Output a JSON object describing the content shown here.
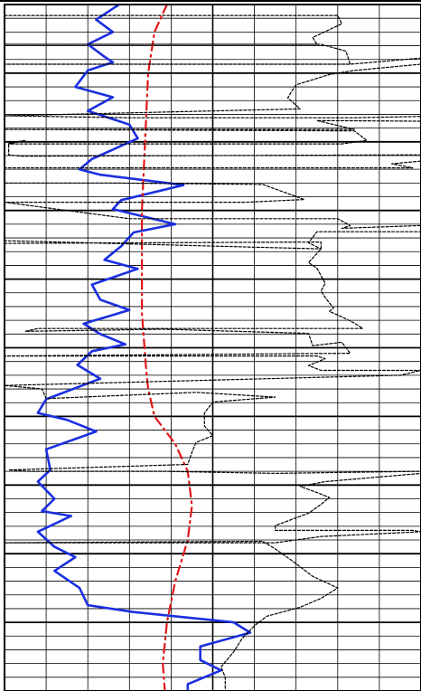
{
  "chart_data": {
    "type": "line",
    "title": "",
    "xlabel": "",
    "ylabel": "",
    "grid": true,
    "x_range": [
      0,
      10
    ],
    "depth_range": [
      0,
      100
    ],
    "colors": {
      "background": "#ffffff",
      "grid": "#000000",
      "blue_curve": "#1a2fe0",
      "red_curve": "#e01818",
      "dashed_curves": "#000000"
    },
    "series": [
      {
        "key": "blue_solid",
        "style": "solid",
        "color": "#1a2fe0",
        "points": [
          [
            2.75,
            0
          ],
          [
            2.2,
            2.2
          ],
          [
            2.6,
            4
          ],
          [
            2.0,
            5.8
          ],
          [
            2.4,
            7.6
          ],
          [
            2.6,
            8.4
          ],
          [
            2.0,
            9.6
          ],
          [
            1.7,
            12
          ],
          [
            2.6,
            13.5
          ],
          [
            2.0,
            15.5
          ],
          [
            3.0,
            17.5
          ],
          [
            3.2,
            19.5
          ],
          [
            2.1,
            22.5
          ],
          [
            1.8,
            24
          ],
          [
            2.3,
            24.8
          ],
          [
            4.3,
            26.3
          ],
          [
            2.8,
            28.5
          ],
          [
            2.6,
            29.8
          ],
          [
            4.1,
            32
          ],
          [
            3.1,
            33.2
          ],
          [
            2.8,
            35.2
          ],
          [
            2.4,
            37.2
          ],
          [
            3.2,
            38.5
          ],
          [
            2.1,
            40.8
          ],
          [
            2.3,
            43
          ],
          [
            3.0,
            44.5
          ],
          [
            1.9,
            46.5
          ],
          [
            2.3,
            48
          ],
          [
            2.9,
            49.5
          ],
          [
            2.1,
            50.5
          ],
          [
            1.75,
            52.5
          ],
          [
            2.3,
            54.5
          ],
          [
            1.0,
            57.5
          ],
          [
            0.8,
            59.5
          ],
          [
            1.5,
            60.5
          ],
          [
            2.2,
            62.2
          ],
          [
            1.0,
            64.8
          ],
          [
            1.1,
            67.8
          ],
          [
            0.8,
            69.5
          ],
          [
            1.2,
            72
          ],
          [
            0.9,
            73.8
          ],
          [
            1.6,
            74.5
          ],
          [
            0.8,
            76.8
          ],
          [
            1.2,
            79
          ],
          [
            1.7,
            80.5
          ],
          [
            1.2,
            82.5
          ],
          [
            1.8,
            85
          ],
          [
            2.0,
            87.5
          ],
          [
            3.1,
            88.5
          ],
          [
            5.5,
            90
          ],
          [
            5.9,
            91.5
          ],
          [
            4.7,
            93.5
          ],
          [
            4.7,
            95.5
          ],
          [
            5.2,
            97
          ],
          [
            4.4,
            99
          ],
          [
            4.4,
            100
          ]
        ]
      },
      {
        "key": "red_dashdot",
        "style": "dashdot",
        "color": "#e01818",
        "points": [
          [
            3.9,
            0
          ],
          [
            3.6,
            4
          ],
          [
            3.45,
            10
          ],
          [
            3.3,
            30
          ],
          [
            3.3,
            45
          ],
          [
            3.4,
            53
          ],
          [
            3.45,
            56
          ],
          [
            3.6,
            60
          ],
          [
            4.1,
            64
          ],
          [
            4.4,
            68
          ],
          [
            4.5,
            73
          ],
          [
            4.4,
            78
          ],
          [
            4.1,
            84
          ],
          [
            3.9,
            90
          ],
          [
            3.8,
            96
          ],
          [
            3.85,
            100
          ]
        ]
      },
      {
        "key": "black_dashed",
        "style": "dashed",
        "color": "#000000",
        "points": [
          [
            0,
            1.6
          ],
          [
            0.4,
            1.6
          ],
          [
            1.0,
            1.6
          ],
          [
            3.2,
            1.6
          ],
          [
            8.0,
            1.6
          ],
          [
            8.1,
            2.8
          ],
          [
            7.4,
            4.8
          ],
          [
            7.5,
            5.8
          ],
          [
            0,
            5.8
          ],
          [
            7.6,
            5.8
          ],
          [
            8.2,
            6.8
          ],
          [
            8.3,
            8.7
          ],
          [
            0,
            8.7
          ],
          [
            8.3,
            8.7
          ],
          [
            10,
            7.8
          ],
          [
            10,
            8.7
          ],
          [
            8.4,
            9.6
          ],
          [
            7.8,
            10.2
          ],
          [
            7.0,
            11.7
          ],
          [
            6.9,
            12.6
          ],
          [
            6.8,
            13.6
          ],
          [
            7.1,
            15.2
          ],
          [
            0,
            16.2
          ],
          [
            3.0,
            16.5
          ],
          [
            8.4,
            16.5
          ],
          [
            10,
            16.3
          ],
          [
            10,
            17.0
          ],
          [
            7.5,
            16.9
          ],
          [
            8.4,
            18.2
          ],
          [
            0,
            18.2
          ],
          [
            8.4,
            18.4
          ],
          [
            8.7,
            19.8
          ],
          [
            8.1,
            20.3
          ],
          [
            0.1,
            20.3
          ],
          [
            0.5,
            19.8
          ],
          [
            0.1,
            20.2
          ],
          [
            0.1,
            21.9
          ],
          [
            0.4,
            22.1
          ],
          [
            10,
            21.9
          ],
          [
            10,
            22.8
          ],
          [
            9.3,
            23.2
          ],
          [
            9.8,
            23.8
          ],
          [
            0,
            23.8
          ],
          [
            0,
            26.0
          ],
          [
            2.5,
            26.0
          ],
          [
            6.2,
            26.2
          ],
          [
            7.2,
            28.4
          ],
          [
            5.8,
            28.8
          ],
          [
            0,
            28.8
          ],
          [
            3.0,
            31.2
          ],
          [
            8.0,
            31.2
          ],
          [
            8.3,
            32.2
          ],
          [
            8.1,
            32.6
          ],
          [
            10,
            32.2
          ],
          [
            10,
            33.1
          ],
          [
            7.5,
            33.1
          ],
          [
            7.3,
            34.7
          ],
          [
            7.6,
            35.6
          ],
          [
            0,
            34.4
          ],
          [
            0,
            34.8
          ],
          [
            7.6,
            34.6
          ],
          [
            7.6,
            35.6
          ],
          [
            7.3,
            37.6
          ],
          [
            7.5,
            38.4
          ],
          [
            7.7,
            40.6
          ],
          [
            7.6,
            41.7
          ],
          [
            7.7,
            42.7
          ],
          [
            7.9,
            44.2
          ],
          [
            7.8,
            44.7
          ],
          [
            8.1,
            45.5
          ],
          [
            8.4,
            46.4
          ],
          [
            8.6,
            47.2
          ],
          [
            0.8,
            47.2
          ],
          [
            0.5,
            47.6
          ],
          [
            3.8,
            47.3
          ],
          [
            7.3,
            47.9
          ],
          [
            7.4,
            49.7
          ],
          [
            8.1,
            49.2
          ],
          [
            8.3,
            50.8
          ],
          [
            0,
            51.2
          ],
          [
            4.0,
            51.2
          ],
          [
            7.5,
            51.2
          ],
          [
            7.7,
            51.6
          ],
          [
            7.3,
            52.6
          ],
          [
            7.6,
            53.3
          ],
          [
            10,
            53.3
          ],
          [
            9.5,
            54.0
          ],
          [
            0,
            55.5
          ],
          [
            0.9,
            56.0
          ],
          [
            1.0,
            57.4
          ],
          [
            4.6,
            56.5
          ],
          [
            6.5,
            57.2
          ],
          [
            5.0,
            57.9
          ],
          [
            4.8,
            59.5
          ],
          [
            4.8,
            61.4
          ],
          [
            5.0,
            62.8
          ],
          [
            4.6,
            63.8
          ],
          [
            4.5,
            65.2
          ],
          [
            4.4,
            67.0
          ],
          [
            0.1,
            67.8
          ],
          [
            0.6,
            68.0
          ],
          [
            3.8,
            68.0
          ],
          [
            6.5,
            68.3
          ],
          [
            10,
            68.0
          ],
          [
            10,
            68.3
          ],
          [
            7.7,
            69.5
          ],
          [
            7.1,
            70.2
          ],
          [
            7.5,
            71.1
          ],
          [
            7.8,
            71.8
          ],
          [
            7.6,
            72.8
          ],
          [
            7.3,
            74.1
          ],
          [
            6.5,
            75.9
          ],
          [
            6.5,
            76.6
          ],
          [
            9.8,
            76.6
          ],
          [
            10,
            76.8
          ],
          [
            7.6,
            77.5
          ],
          [
            6.5,
            78.4
          ],
          [
            0,
            78.4
          ],
          [
            6.2,
            78.2
          ],
          [
            6.5,
            79.3
          ],
          [
            6.9,
            81.0
          ],
          [
            7.4,
            83.3
          ],
          [
            8.0,
            85.0
          ],
          [
            7.6,
            86.5
          ],
          [
            7.1,
            87.8
          ],
          [
            6.3,
            89.1
          ],
          [
            6.0,
            90.5
          ],
          [
            5.7,
            92.4
          ],
          [
            5.5,
            94.3
          ],
          [
            5.2,
            96.5
          ],
          [
            5.3,
            98.0
          ],
          [
            5.3,
            100
          ]
        ]
      }
    ]
  }
}
